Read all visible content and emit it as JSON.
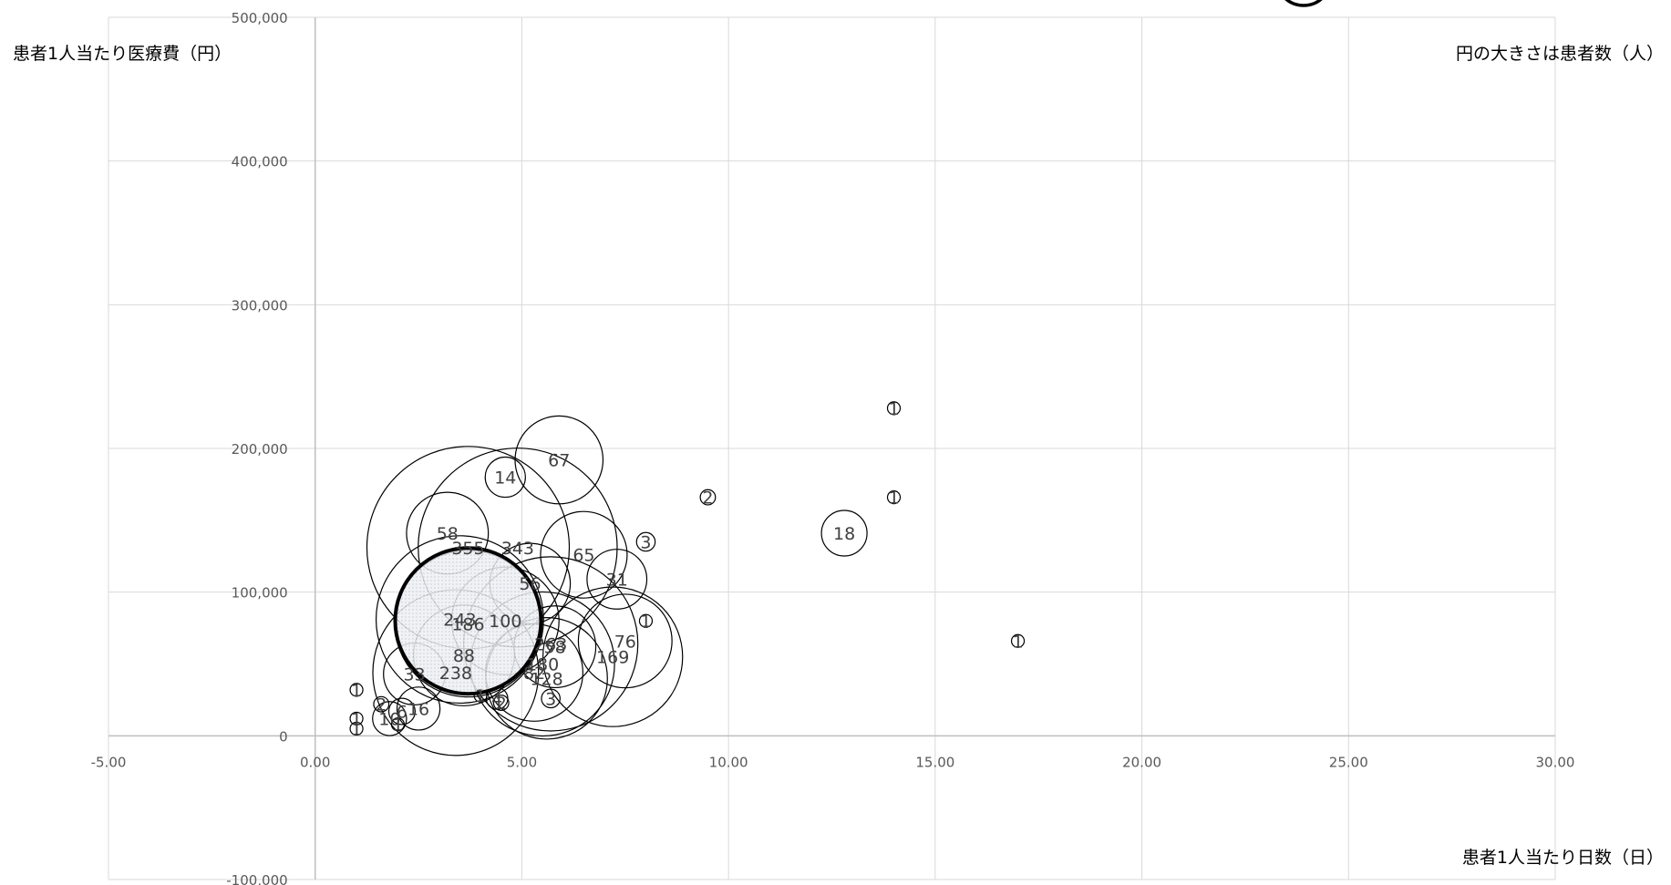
{
  "chart_data": {
    "type": "bubble",
    "title": "",
    "xlabel": "患者1人当たり日数（日）",
    "ylabel": "患者1人当たり医療費（円）",
    "size_note": "円の大きさは患者数（人）",
    "xlim": [
      -5,
      30
    ],
    "ylim": [
      -100000,
      500000
    ],
    "x_ticks": [
      -5,
      0,
      5,
      10,
      15,
      20,
      25,
      30
    ],
    "y_ticks": [
      -100000,
      0,
      100000,
      200000,
      300000,
      400000,
      500000
    ],
    "x_tick_labels": [
      "-5.00",
      "0.00",
      "5.00",
      "10.00",
      "15.00",
      "20.00",
      "25.00",
      "30.00"
    ],
    "y_tick_labels": [
      "-100,000",
      "0",
      "100,000",
      "200,000",
      "300,000",
      "400,000",
      "500,000"
    ],
    "grid": true,
    "highlight_color": "#000000",
    "points": [
      {
        "x": 3.7,
        "y": 131000,
        "size": 355,
        "label": "355"
      },
      {
        "x": 4.9,
        "y": 131000,
        "size": 343,
        "label": "343"
      },
      {
        "x": 5.7,
        "y": 64000,
        "size": 263,
        "label": "263"
      },
      {
        "x": 3.5,
        "y": 81000,
        "size": 243,
        "label": "243"
      },
      {
        "x": 3.4,
        "y": 44000,
        "size": 238,
        "label": "238"
      },
      {
        "x": 3.7,
        "y": 78000,
        "size": 186,
        "label": "186"
      },
      {
        "x": 5.5,
        "y": 50000,
        "size": 180,
        "label": "180"
      },
      {
        "x": 7.2,
        "y": 55000,
        "size": 169,
        "label": "169"
      },
      {
        "x": 5.6,
        "y": 40000,
        "size": 128,
        "label": "128"
      },
      {
        "x": 4.6,
        "y": 80000,
        "size": 100,
        "label": "100"
      },
      {
        "x": 3.6,
        "y": 56000,
        "size": 88,
        "label": "88"
      },
      {
        "x": 5.3,
        "y": 44000,
        "size": 82,
        "label": "82"
      },
      {
        "x": 7.5,
        "y": 66000,
        "size": 76,
        "label": "76"
      },
      {
        "x": 5.9,
        "y": 192000,
        "size": 67,
        "label": "67"
      },
      {
        "x": 6.5,
        "y": 126000,
        "size": 65,
        "label": "65"
      },
      {
        "x": 5.8,
        "y": 62000,
        "size": 58,
        "label": "58"
      },
      {
        "x": 3.2,
        "y": 141000,
        "size": 58,
        "label": "58"
      },
      {
        "x": 5.2,
        "y": 106000,
        "size": 56,
        "label": "56"
      },
      {
        "x": 2.4,
        "y": 43000,
        "size": 33,
        "label": "33"
      },
      {
        "x": 7.3,
        "y": 109000,
        "size": 31,
        "label": "31"
      },
      {
        "x": 12.8,
        "y": 141000,
        "size": 18,
        "label": "18"
      },
      {
        "x": 2.5,
        "y": 19000,
        "size": 16,
        "label": "16"
      },
      {
        "x": 4.6,
        "y": 180000,
        "size": 14,
        "label": "14"
      },
      {
        "x": 1.8,
        "y": 12000,
        "size": 10,
        "label": "10"
      },
      {
        "x": 2.1,
        "y": 17000,
        "size": 6,
        "label": "6"
      },
      {
        "x": 4.4,
        "y": 26000,
        "size": 4,
        "label": "4"
      },
      {
        "x": 5.7,
        "y": 26000,
        "size": 3,
        "label": "3"
      },
      {
        "x": 8.0,
        "y": 135000,
        "size": 3,
        "label": "3"
      },
      {
        "x": 1.6,
        "y": 22000,
        "size": 2,
        "label": "2"
      },
      {
        "x": 4.5,
        "y": 23000,
        "size": 2,
        "label": "2"
      },
      {
        "x": 9.5,
        "y": 166000,
        "size": 2,
        "label": "2"
      },
      {
        "x": 1.0,
        "y": 12000,
        "size": 1,
        "label": "1"
      },
      {
        "x": 1.0,
        "y": 32000,
        "size": 1,
        "label": "1"
      },
      {
        "x": 1.0,
        "y": 5000,
        "size": 1,
        "label": "1"
      },
      {
        "x": 2.0,
        "y": 8000,
        "size": 1,
        "label": "1"
      },
      {
        "x": 4.0,
        "y": 28000,
        "size": 1,
        "label": "1"
      },
      {
        "x": 8.0,
        "y": 80000,
        "size": 1,
        "label": "1"
      },
      {
        "x": 14.0,
        "y": 228000,
        "size": 1,
        "label": "1"
      },
      {
        "x": 14.0,
        "y": 166000,
        "size": 1,
        "label": "1"
      },
      {
        "x": 17.0,
        "y": 66000,
        "size": 1,
        "label": "1"
      }
    ],
    "highlight": {
      "x": 3.7,
      "y": 80000,
      "note": "total / average bubble (bold outline, shaded)"
    }
  }
}
